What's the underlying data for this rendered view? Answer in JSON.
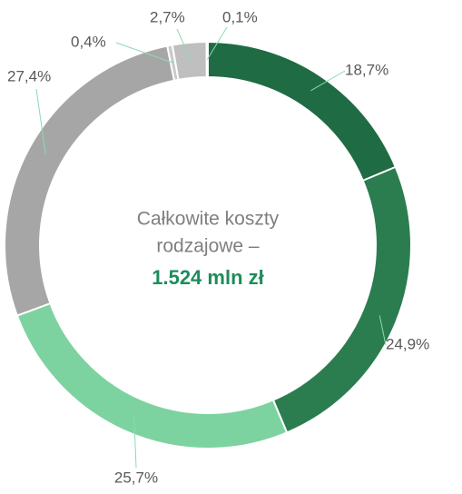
{
  "chart_data": {
    "type": "donut",
    "center_text": [
      "Całkowite koszty",
      "rodzajowe –"
    ],
    "center_value": "1.524 mln zł",
    "values": [
      18.7,
      24.9,
      25.7,
      27.4,
      0.4,
      2.7,
      0.1
    ],
    "value_labels": [
      "18,7%",
      "24,9%",
      "25,7%",
      "27,4%",
      "0,4%",
      "2,7%",
      "0,1%"
    ],
    "colors": [
      "#1f6b43",
      "#2b7d50",
      "#7dd3a0",
      "#a6a6a6",
      "#c9c9c9",
      "#bfbfbf",
      "#d9d9d9"
    ]
  }
}
